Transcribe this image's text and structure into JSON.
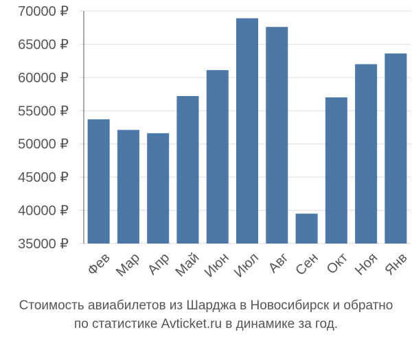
{
  "chart_data": {
    "type": "bar",
    "title": "",
    "xlabel": "",
    "ylabel": "",
    "categories": [
      "Фев",
      "Мар",
      "Апр",
      "Май",
      "Июн",
      "Июл",
      "Авг",
      "Сен",
      "Окт",
      "Ноя",
      "Янв"
    ],
    "values": [
      53700,
      52100,
      51600,
      57200,
      61100,
      68900,
      67600,
      39500,
      57000,
      62000,
      63600
    ],
    "ylim": [
      35000,
      70000
    ],
    "yticks": [
      35000,
      40000,
      45000,
      50000,
      55000,
      60000,
      65000,
      70000
    ],
    "ytick_labels": [
      "35000 ₽",
      "40000 ₽",
      "45000 ₽",
      "50000 ₽",
      "55000 ₽",
      "60000 ₽",
      "65000 ₽",
      "70000 ₽"
    ],
    "grid": true,
    "bar_color": "#4c78a8",
    "grid_color": "#dddddd"
  },
  "caption": {
    "line1": "Стоимость авиабилетов из Шарджа в Новосибирск и обратно",
    "line2": "по статистике Avticket.ru в динамике за год."
  }
}
